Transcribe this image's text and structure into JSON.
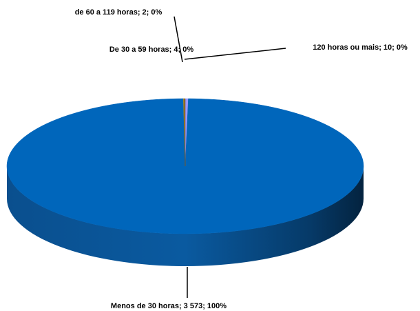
{
  "chart_data": {
    "type": "pie3d",
    "labels": [
      "120 horas ou mais; 10; 0%",
      "Menos de 30 horas; 3 573; 100%",
      "De 30 a 59 horas; 4; 0%",
      "de 60 a 119 horas; 2; 0%"
    ],
    "values": [
      10,
      3573,
      4,
      2
    ],
    "colors": [
      "#9999ff",
      "#0066bb",
      "#a08a2a",
      "#7a4a1a"
    ]
  }
}
